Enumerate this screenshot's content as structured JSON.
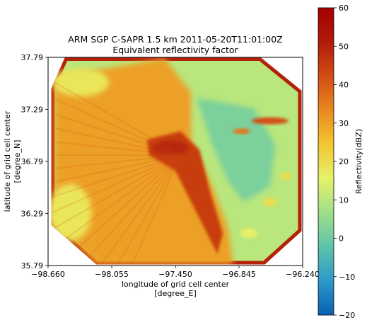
{
  "chart_data": [
    {
      "type": "heatmap",
      "title": "ARM SGP C-SAPR 1.5 km 2011-05-20T11:01:00Z",
      "subtitle": "Equivalent reflectivity factor",
      "xlabel_line1": "longitude of grid cell center",
      "xlabel_line2": "[degree_E]",
      "ylabel_line1": "latitude of grid cell center",
      "ylabel_line2": "[degree_N]",
      "xlim": [
        -98.66,
        -96.24
      ],
      "ylim": [
        35.79,
        37.79
      ],
      "xticks": [
        -98.66,
        -98.055,
        -97.45,
        -96.845,
        -96.24
      ],
      "xtick_labels": [
        "−98.660",
        "−98.055",
        "−97.450",
        "−96.845",
        "−96.240"
      ],
      "yticks": [
        35.79,
        36.29,
        36.79,
        37.29,
        37.79
      ],
      "ytick_labels": [
        "35.79",
        "36.29",
        "36.79",
        "37.29",
        "37.79"
      ],
      "colorbar": {
        "label": "Reflectivity(dBZ)",
        "range": [
          -20,
          60
        ],
        "ticks": [
          -20,
          -10,
          0,
          10,
          20,
          30,
          40,
          50,
          60
        ],
        "tick_labels": [
          "−20",
          "−10",
          "0",
          "10",
          "20",
          "30",
          "40",
          "50",
          "60"
        ],
        "colormap": [
          "#0a5fb4",
          "#2a9ac9",
          "#5ec3ac",
          "#9edf88",
          "#e6f26a",
          "#f3c631",
          "#e98920",
          "#d24c14",
          "#b01b0a",
          "#a50000"
        ]
      },
      "grid": false,
      "legend": "none",
      "field_regions": [
        {
          "region": "domain background",
          "dbz": 10
        },
        {
          "region": "outer ring edge",
          "dbz": 50
        },
        {
          "region": "western half",
          "dbz": 30
        },
        {
          "region": "central convective line",
          "dbz": 45
        },
        {
          "region": "eastern clear air",
          "dbz": 2
        },
        {
          "region": "northeast cell band",
          "dbz": 42
        },
        {
          "region": "southeast cells",
          "dbz": 20
        }
      ]
    }
  ]
}
